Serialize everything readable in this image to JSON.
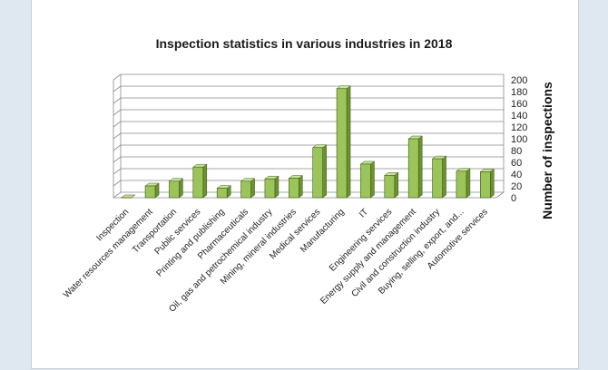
{
  "chart_data": {
    "type": "bar",
    "title": "Inspection statistics in various industries in 2018",
    "xlabel": "",
    "ylabel": "Number of inspections",
    "ylim": [
      0,
      200
    ],
    "yticks": [
      0,
      20,
      40,
      60,
      80,
      100,
      120,
      140,
      160,
      180,
      200
    ],
    "grid": true,
    "categories": [
      "Inspection",
      "Water resources management",
      "Transportation",
      "Public services",
      "Printing and publishing",
      "Pharmaceuticals",
      "Oil, gas and petrochemical industry",
      "Mining, mineral industries",
      "Medical services",
      "Manufacturing",
      "IT",
      "Engineering services",
      "Energy supply and management",
      "Civil and construction industry",
      "Buying, selling, export, and...",
      "Automotive services"
    ],
    "values": [
      0,
      20,
      28,
      52,
      16,
      28,
      32,
      33,
      85,
      185,
      57,
      38,
      100,
      66,
      45,
      44
    ],
    "colors": {
      "bar_front": "#9bc45a",
      "bar_side": "#6b9130",
      "bar_top": "#c8e39a",
      "bar_edge": "#3d5a18",
      "grid": "#8a8a8a"
    }
  }
}
